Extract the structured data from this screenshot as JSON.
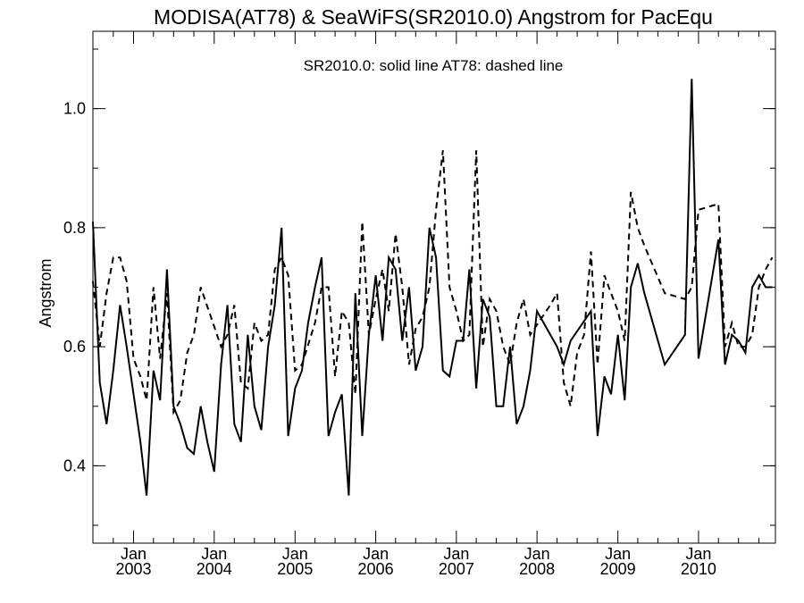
{
  "chart_data": {
    "type": "line",
    "title": "MODISA(AT78) & SeaWiFS(SR2010.0)  Angstrom for PacEqu",
    "annotation": "SR2010.0: solid line   AT78: dashed line",
    "xlabel": "",
    "ylabel": "Angstrom",
    "xlim": [
      "2002-07-01",
      "2010-12-15"
    ],
    "ylim": [
      0.27,
      1.13
    ],
    "yticks": [
      0.4,
      0.6,
      0.8,
      1.0
    ],
    "ytick_labels": [
      "0.4",
      "0.6",
      "0.8",
      "1.0"
    ],
    "xticks": [
      {
        "date": "2003-01-01",
        "month": "Jan",
        "year": "2003"
      },
      {
        "date": "2004-01-01",
        "month": "Jan",
        "year": "2004"
      },
      {
        "date": "2005-01-01",
        "month": "Jan",
        "year": "2005"
      },
      {
        "date": "2006-01-01",
        "month": "Jan",
        "year": "2006"
      },
      {
        "date": "2007-01-01",
        "month": "Jan",
        "year": "2007"
      },
      {
        "date": "2008-01-01",
        "month": "Jan",
        "year": "2008"
      },
      {
        "date": "2009-01-01",
        "month": "Jan",
        "year": "2009"
      },
      {
        "date": "2010-01-01",
        "month": "Jan",
        "year": "2010"
      }
    ],
    "grid": false,
    "series": [
      {
        "name": "SR2010.0",
        "style": "solid",
        "color": "#000000",
        "x": [
          "2002-07-01",
          "2002-08-01",
          "2002-09-01",
          "2002-10-01",
          "2002-11-01",
          "2002-12-01",
          "2003-01-01",
          "2003-02-01",
          "2003-03-01",
          "2003-04-01",
          "2003-05-01",
          "2003-06-01",
          "2003-07-01",
          "2003-08-01",
          "2003-09-01",
          "2003-10-01",
          "2003-11-01",
          "2003-12-01",
          "2004-01-01",
          "2004-02-01",
          "2004-03-01",
          "2004-04-01",
          "2004-05-01",
          "2004-06-01",
          "2004-07-01",
          "2004-08-01",
          "2004-09-01",
          "2004-10-01",
          "2004-11-01",
          "2004-12-01",
          "2005-01-01",
          "2005-02-01",
          "2005-03-01",
          "2005-04-01",
          "2005-05-01",
          "2005-06-01",
          "2005-07-01",
          "2005-08-01",
          "2005-09-01",
          "2005-10-01",
          "2005-11-01",
          "2005-12-01",
          "2006-01-01",
          "2006-02-01",
          "2006-03-01",
          "2006-04-01",
          "2006-05-01",
          "2006-06-01",
          "2006-07-01",
          "2006-08-01",
          "2006-09-01",
          "2006-10-01",
          "2006-11-01",
          "2006-12-01",
          "2007-01-01",
          "2007-02-01",
          "2007-03-01",
          "2007-04-01",
          "2007-05-01",
          "2007-06-01",
          "2007-07-01",
          "2007-08-01",
          "2007-09-01",
          "2007-10-01",
          "2007-11-01",
          "2007-12-01",
          "2008-01-01",
          "2008-04-01",
          "2008-05-01",
          "2008-06-01",
          "2008-09-01",
          "2008-10-01",
          "2008-11-01",
          "2008-12-01",
          "2009-01-01",
          "2009-02-01",
          "2009-03-01",
          "2009-04-01",
          "2009-05-01",
          "2009-08-01",
          "2009-11-01",
          "2009-12-01",
          "2010-01-01",
          "2010-04-01",
          "2010-05-01",
          "2010-06-01",
          "2010-07-01",
          "2010-08-01",
          "2010-09-01",
          "2010-10-01",
          "2010-11-01",
          "2010-12-01"
        ],
        "values": [
          0.81,
          0.54,
          0.47,
          0.56,
          0.67,
          0.6,
          0.52,
          0.44,
          0.35,
          0.56,
          0.51,
          0.73,
          0.5,
          0.47,
          0.43,
          0.42,
          0.5,
          0.44,
          0.39,
          0.57,
          0.67,
          0.47,
          0.44,
          0.62,
          0.5,
          0.46,
          0.6,
          0.67,
          0.8,
          0.45,
          0.53,
          0.56,
          0.64,
          0.7,
          0.75,
          0.45,
          0.49,
          0.52,
          0.35,
          0.69,
          0.45,
          0.62,
          0.72,
          0.61,
          0.75,
          0.73,
          0.61,
          0.7,
          0.56,
          0.6,
          0.8,
          0.75,
          0.56,
          0.55,
          0.61,
          0.61,
          0.73,
          0.53,
          0.68,
          0.65,
          0.5,
          0.5,
          0.6,
          0.47,
          0.5,
          0.56,
          0.66,
          0.6,
          0.57,
          0.61,
          0.66,
          0.45,
          0.55,
          0.52,
          0.62,
          0.51,
          0.7,
          0.74,
          0.69,
          0.57,
          0.62,
          1.05,
          0.58,
          0.78,
          0.57,
          0.62,
          0.61,
          0.59,
          0.7,
          0.72,
          0.7,
          0.7
        ]
      },
      {
        "name": "AT78",
        "style": "dashed",
        "color": "#000000",
        "x": [
          "2002-07-01",
          "2002-08-01",
          "2002-09-01",
          "2002-10-01",
          "2002-11-01",
          "2002-12-01",
          "2003-01-01",
          "2003-02-01",
          "2003-03-01",
          "2003-04-01",
          "2003-05-01",
          "2003-06-01",
          "2003-07-01",
          "2003-08-01",
          "2003-09-01",
          "2003-10-01",
          "2003-11-01",
          "2004-02-01",
          "2004-03-01",
          "2004-04-01",
          "2004-05-01",
          "2004-06-01",
          "2004-07-01",
          "2004-08-01",
          "2004-09-01",
          "2004-10-01",
          "2004-11-01",
          "2004-12-01",
          "2005-01-01",
          "2005-02-01",
          "2005-04-01",
          "2005-05-01",
          "2005-06-01",
          "2005-07-01",
          "2005-08-01",
          "2005-09-01",
          "2005-10-01",
          "2005-11-01",
          "2005-12-01",
          "2006-01-01",
          "2006-02-01",
          "2006-03-01",
          "2006-04-01",
          "2006-05-01",
          "2006-06-01",
          "2006-07-01",
          "2006-08-01",
          "2006-09-01",
          "2006-10-01",
          "2006-11-01",
          "2006-12-01",
          "2007-01-01",
          "2007-02-01",
          "2007-03-01",
          "2007-04-01",
          "2007-05-01",
          "2007-06-01",
          "2007-07-01",
          "2007-08-01",
          "2007-09-01",
          "2007-10-01",
          "2007-11-01",
          "2007-12-01",
          "2008-03-01",
          "2008-04-01",
          "2008-05-01",
          "2008-06-01",
          "2008-07-01",
          "2008-08-01",
          "2008-09-01",
          "2008-10-01",
          "2008-11-01",
          "2008-12-01",
          "2009-01-01",
          "2009-02-01",
          "2009-03-01",
          "2009-04-01",
          "2009-05-01",
          "2009-08-01",
          "2009-11-01",
          "2009-12-01",
          "2010-01-01",
          "2010-04-01",
          "2010-05-01",
          "2010-06-01",
          "2010-07-01",
          "2010-08-01",
          "2010-09-01",
          "2010-10-01",
          "2010-11-01",
          "2010-12-01"
        ],
        "values": [
          0.71,
          0.6,
          0.69,
          0.75,
          0.75,
          0.71,
          0.58,
          0.55,
          0.51,
          0.7,
          0.58,
          0.69,
          0.49,
          0.51,
          0.59,
          0.62,
          0.7,
          0.6,
          0.62,
          0.67,
          0.54,
          0.53,
          0.64,
          0.61,
          0.62,
          0.73,
          0.75,
          0.72,
          0.56,
          0.57,
          0.64,
          0.7,
          0.7,
          0.55,
          0.66,
          0.64,
          0.52,
          0.81,
          0.62,
          0.68,
          0.73,
          0.66,
          0.79,
          0.7,
          0.57,
          0.63,
          0.65,
          0.7,
          0.83,
          0.93,
          0.7,
          0.66,
          0.61,
          0.62,
          0.93,
          0.6,
          0.68,
          0.66,
          0.6,
          0.57,
          0.64,
          0.68,
          0.62,
          0.67,
          0.69,
          0.54,
          0.5,
          0.59,
          0.62,
          0.76,
          0.57,
          0.72,
          0.69,
          0.66,
          0.61,
          0.86,
          0.8,
          0.77,
          0.69,
          0.68,
          0.7,
          0.83,
          0.84,
          0.6,
          0.64,
          0.6,
          0.6,
          0.62,
          0.7,
          0.73,
          0.75
        ]
      }
    ]
  }
}
